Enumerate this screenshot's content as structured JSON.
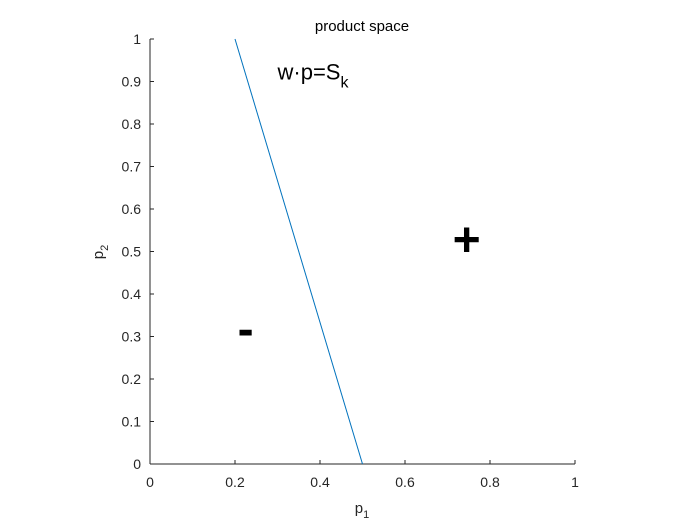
{
  "chart_data": {
    "type": "line",
    "title": "product space",
    "xlabel": {
      "base": "p",
      "subscript": "1"
    },
    "ylabel": {
      "base": "p",
      "subscript": "2"
    },
    "xlim": [
      0,
      1
    ],
    "ylim": [
      0,
      1
    ],
    "xticks": [
      "0",
      "0.2",
      "0.4",
      "0.6",
      "0.8",
      "1"
    ],
    "yticks": [
      "0",
      "0.1",
      "0.2",
      "0.3",
      "0.4",
      "0.5",
      "0.6",
      "0.7",
      "0.8",
      "0.9",
      "1"
    ],
    "grid": false,
    "series": [
      {
        "x": [
          0.2,
          0.5
        ],
        "y": [
          1,
          0
        ],
        "color": "#0072BD"
      }
    ],
    "annotations": [
      {
        "base": "w·p=S",
        "subscript": "k",
        "x": 0.3,
        "y": 0.905
      },
      {
        "text": "+",
        "x": 0.745,
        "y": 0.49
      },
      {
        "text": "-",
        "x": 0.225,
        "y": 0.28
      }
    ]
  },
  "colors": {
    "axis": "#262626",
    "line": "#0072BD"
  }
}
